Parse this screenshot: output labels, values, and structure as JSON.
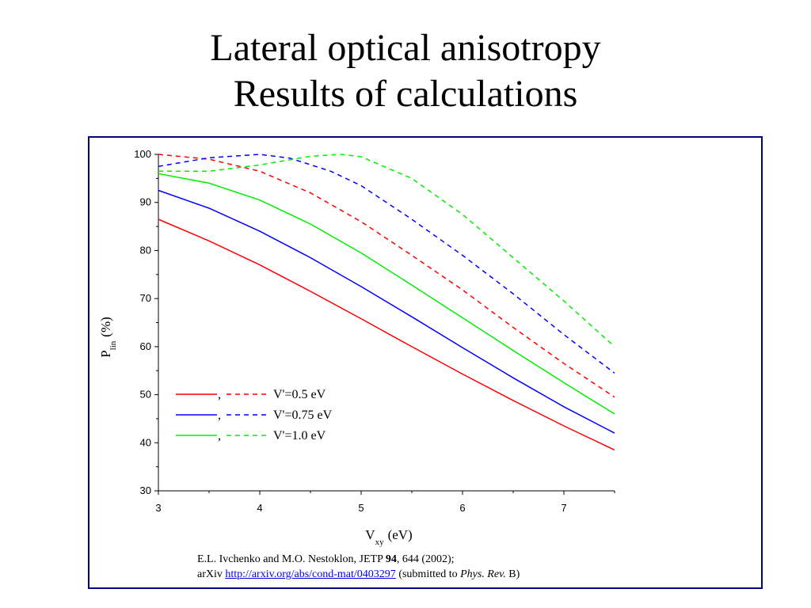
{
  "title": {
    "line1": "Lateral optical anisotropy",
    "line2": "Results of calculations"
  },
  "chart_data": {
    "type": "line",
    "xlabel_main": "V",
    "xlabel_sub": "xy",
    "xlabel_unit": "(eV)",
    "ylabel_main": "P",
    "ylabel_sub": "lin",
    "ylabel_unit": "(%)",
    "xlim": [
      3,
      7.5
    ],
    "ylim": [
      30,
      100
    ],
    "xticks": [
      3,
      4,
      5,
      6,
      7
    ],
    "yticks": [
      30,
      40,
      50,
      60,
      70,
      80,
      90,
      100
    ],
    "grid": false,
    "legend_position": "lower-left",
    "legend": [
      {
        "label": "V'=0.5 eV",
        "separator": ",",
        "color": "#ff0000"
      },
      {
        "label": "V'=0.75 eV",
        "separator": ",",
        "color": "#0000ff"
      },
      {
        "label": "V'=1.0 eV",
        "separator": ",",
        "color": "#00ee00"
      }
    ],
    "series": [
      {
        "color": "#ff0000",
        "style": "solid",
        "x": [
          3,
          3.5,
          4,
          4.5,
          5,
          5.5,
          6,
          6.5,
          7,
          7.5
        ],
        "values": [
          86.5,
          82,
          77,
          71.5,
          65.8,
          60,
          54.3,
          48.8,
          43.5,
          38.5
        ]
      },
      {
        "color": "#0000ff",
        "style": "solid",
        "x": [
          3,
          3.5,
          4,
          4.5,
          5,
          5.5,
          6,
          6.5,
          7,
          7.5
        ],
        "values": [
          92.5,
          88.8,
          84,
          78.5,
          72.5,
          66.2,
          59.8,
          53.5,
          47.5,
          42
        ]
      },
      {
        "color": "#00ee00",
        "style": "solid",
        "x": [
          3,
          3.5,
          4,
          4.5,
          5,
          5.5,
          6,
          6.5,
          7,
          7.5
        ],
        "values": [
          96,
          94,
          90.5,
          85.5,
          79.5,
          72.8,
          66,
          59.2,
          52.5,
          46
        ]
      },
      {
        "color": "#ff0000",
        "style": "dashed",
        "x": [
          3,
          3.5,
          4,
          4.5,
          5,
          5.5,
          6,
          6.5,
          7,
          7.5
        ],
        "values": [
          100,
          99,
          96.5,
          92,
          86,
          79,
          71.8,
          64,
          56.5,
          49.5
        ]
      },
      {
        "color": "#0000ff",
        "style": "dashed",
        "x": [
          3,
          3.5,
          4,
          4.3,
          4.7,
          5,
          5.5,
          6,
          6.5,
          7,
          7.5
        ],
        "values": [
          97.5,
          99.3,
          100,
          99.2,
          96.5,
          93.5,
          86.5,
          79,
          71,
          62.5,
          54.5
        ]
      },
      {
        "color": "#00ee00",
        "style": "dashed",
        "x": [
          3,
          3.5,
          4,
          4.5,
          4.8,
          5,
          5.5,
          6,
          6.5,
          7,
          7.5
        ],
        "values": [
          96.5,
          96.5,
          97.8,
          99.6,
          100,
          99.5,
          95,
          87.5,
          78.5,
          69.5,
          60
        ]
      }
    ]
  },
  "citation": {
    "line1_prefix": "E.L. Ivchenko and M.O. Nestoklon, JETP ",
    "line1_volume": "94",
    "line1_suffix": ", 644 (2002);",
    "line2_prefix": "arXiv ",
    "line2_link": "http://arxiv.org/abs/cond-mat/0403297",
    "line2_middle": " (submitted to ",
    "line2_journal": "Phys. Rev.",
    "line2_suffix": " B)"
  }
}
